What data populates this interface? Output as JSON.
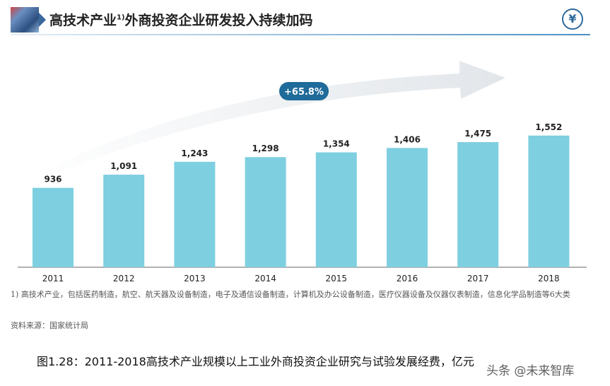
{
  "header": {
    "title": "高技术产业",
    "title_sup": "1)",
    "title_rest": "外商投资企业研发投入持续加码",
    "icon": "yen-icon"
  },
  "chart_data": {
    "type": "bar",
    "categories": [
      "2011",
      "2012",
      "2013",
      "2014",
      "2015",
      "2016",
      "2017",
      "2018"
    ],
    "values": [
      936,
      1091,
      1243,
      1298,
      1354,
      1406,
      1475,
      1552
    ],
    "data_labels": [
      "936",
      "1,091",
      "1,243",
      "1,298",
      "1,354",
      "1,406",
      "1,475",
      "1,552"
    ],
    "annotation": "+65.8%",
    "bar_color": "#7ecfe0",
    "grid": false,
    "ylim": [
      0,
      3150
    ]
  },
  "footnote": "1) 高技术产业，包括医药制造，航空、航天器及设备制造，电子及通信设备制造，计算机及办公设备制造，医疗仪器设备及仪器仪表制造，信息化学品制造等6大类",
  "source": "资料来源：国家统计局",
  "caption": "图1.28：2011-2018高技术产业规模以上工业外商投资企业研究与试验发展经费，亿元",
  "watermark": "头条 @未来智库"
}
